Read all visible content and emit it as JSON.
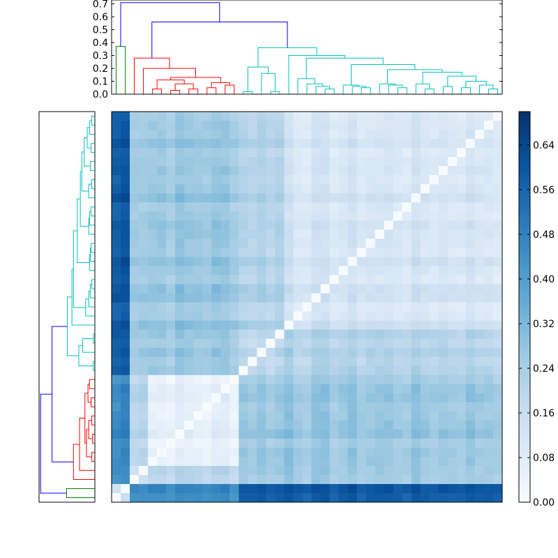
{
  "chart_data": {
    "type": "heatmap",
    "title": "",
    "xlabel": "",
    "ylabel": "",
    "n": 43,
    "colormap": "Blues",
    "colorbar": {
      "min": 0.0,
      "max": 0.7,
      "ticks": [
        0.0,
        0.08,
        0.16,
        0.24,
        0.32,
        0.4,
        0.48,
        0.56,
        0.64
      ],
      "tick_labels": [
        "0.00",
        "0.08",
        "0.16",
        "0.24",
        "0.32",
        "0.40",
        "0.48",
        "0.56",
        "0.64"
      ]
    },
    "dendrogram_top": {
      "ylim": [
        0.0,
        0.73
      ],
      "ticks": [
        0.0,
        0.1,
        0.2,
        0.3,
        0.4,
        0.5,
        0.6,
        0.7
      ],
      "tick_labels": [
        "0.0",
        "0.1",
        "0.2",
        "0.3",
        "0.4",
        "0.5",
        "0.6",
        "0.7"
      ]
    },
    "dendrogram_left": {
      "ylim": [
        0.0,
        0.73
      ]
    },
    "clusters": [
      {
        "members": [
          0,
          1
        ],
        "link_color": "#008000"
      },
      {
        "members": [
          2,
          3,
          4,
          5,
          6,
          7,
          8,
          9,
          10,
          11,
          12,
          13
        ],
        "link_color": "#ff0000"
      },
      {
        "members": [
          14,
          15,
          16,
          17,
          18,
          19,
          20,
          21,
          22,
          23,
          24,
          25,
          26,
          27,
          28,
          29,
          30,
          31,
          32,
          33,
          34,
          35,
          36,
          37,
          38,
          39,
          40,
          41,
          42
        ],
        "link_color": "#00bfbf"
      }
    ],
    "above_threshold_color": "#0000ff",
    "block_mean_distance": {
      "within": [
        0.0,
        0.06,
        0.12
      ],
      "green_red": 0.45,
      "green_cyan": 0.58,
      "red_cyan": 0.27,
      "red_sub_a_sub_b": 0.22,
      "cyan_sub_a_sub_b": 0.22
    },
    "linkage": [
      {
        "a": 0,
        "b": 1,
        "height": 0.37,
        "color": "#008000"
      },
      {
        "a": 10,
        "b": 11,
        "height": 0.05,
        "color": "#ff0000"
      },
      {
        "a": 12,
        "b": 13,
        "height": 0.07,
        "color": "#ff0000"
      },
      {
        "a": 8,
        "b": 9,
        "height": 0.04,
        "color": "#ff0000"
      },
      {
        "a": 6,
        "b": 7,
        "height": 0.03,
        "color": "#ff0000"
      },
      {
        "a": 4,
        "b": 5,
        "height": 0.04,
        "color": "#ff0000"
      },
      {
        "a": "n6_7",
        "b": "n8_9",
        "height": 0.08,
        "color": "#ff0000"
      },
      {
        "a": "n10_11",
        "b": "n12_13",
        "height": 0.09,
        "color": "#ff0000"
      },
      {
        "a": "n4_5",
        "b": "n6_9",
        "height": 0.11,
        "color": "#ff0000"
      },
      {
        "a": "n4_9",
        "b": "n10_13",
        "height": 0.13,
        "color": "#ff0000"
      },
      {
        "a": 3,
        "b": "n4_13",
        "height": 0.2,
        "color": "#ff0000"
      },
      {
        "a": 2,
        "b": "n3_13",
        "height": 0.28,
        "color": "#ff0000"
      },
      {
        "a": 14,
        "b": 15,
        "height": 0.02,
        "color": "#00bfbf"
      },
      {
        "a": 17,
        "b": 18,
        "height": 0.02,
        "color": "#00bfbf"
      },
      {
        "a": 16,
        "b": "n17_18",
        "height": 0.16,
        "color": "#00bfbf"
      },
      {
        "a": "n14_15",
        "b": "n16_18",
        "height": 0.21,
        "color": "#00bfbf"
      },
      {
        "a": 23,
        "b": 24,
        "height": 0.04,
        "color": "#00bfbf"
      },
      {
        "a": 22,
        "b": "n23_24",
        "height": 0.06,
        "color": "#00bfbf"
      },
      {
        "a": 21,
        "b": "n22_24",
        "height": 0.08,
        "color": "#00bfbf"
      },
      {
        "a": 20,
        "b": "n21_24",
        "height": 0.12,
        "color": "#00bfbf"
      },
      {
        "a": 27,
        "b": 28,
        "height": 0.05,
        "color": "#00bfbf"
      },
      {
        "a": 26,
        "b": "n27_28",
        "height": 0.06,
        "color": "#00bfbf"
      },
      {
        "a": 25,
        "b": "n26_28",
        "height": 0.07,
        "color": "#00bfbf"
      },
      {
        "a": 31,
        "b": 32,
        "height": 0.05,
        "color": "#00bfbf"
      },
      {
        "a": 30,
        "b": "n31_32",
        "height": 0.07,
        "color": "#00bfbf"
      },
      {
        "a": 29,
        "b": "n30_32",
        "height": 0.08,
        "color": "#00bfbf"
      },
      {
        "a": 34,
        "b": 35,
        "height": 0.04,
        "color": "#00bfbf"
      },
      {
        "a": 33,
        "b": "n34_35",
        "height": 0.08,
        "color": "#00bfbf"
      },
      {
        "a": 36,
        "b": 37,
        "height": 0.06,
        "color": "#00bfbf"
      },
      {
        "a": 38,
        "b": 39,
        "height": 0.05,
        "color": "#00bfbf"
      },
      {
        "a": 41,
        "b": 42,
        "height": 0.04,
        "color": "#00bfbf"
      },
      {
        "a": 40,
        "b": "n41_42",
        "height": 0.07,
        "color": "#00bfbf"
      },
      {
        "a": "n38_39",
        "b": "n40_42",
        "height": 0.1,
        "color": "#00bfbf"
      },
      {
        "a": "n36_37",
        "b": "n38_42",
        "height": 0.14,
        "color": "#00bfbf"
      },
      {
        "a": "n33_35",
        "b": "n36_42",
        "height": 0.17,
        "color": "#00bfbf"
      },
      {
        "a": "n29_32",
        "b": "n33_42",
        "height": 0.19,
        "color": "#00bfbf"
      },
      {
        "a": "n25_28",
        "b": "n29_42",
        "height": 0.23,
        "color": "#00bfbf"
      },
      {
        "a": "n20_24",
        "b": "n25_42",
        "height": 0.28,
        "color": "#00bfbf"
      },
      {
        "a": 19,
        "b": "n20_42",
        "height": 0.3,
        "color": "#00bfbf"
      },
      {
        "a": "n14_18",
        "b": "n19_42",
        "height": 0.36,
        "color": "#00bfbf"
      },
      {
        "a": "n2_13",
        "b": "n14_42",
        "height": 0.56,
        "color": "#0000ff"
      },
      {
        "a": "n0_1",
        "b": "n2_42",
        "height": 0.71,
        "color": "#0000ff"
      }
    ]
  }
}
